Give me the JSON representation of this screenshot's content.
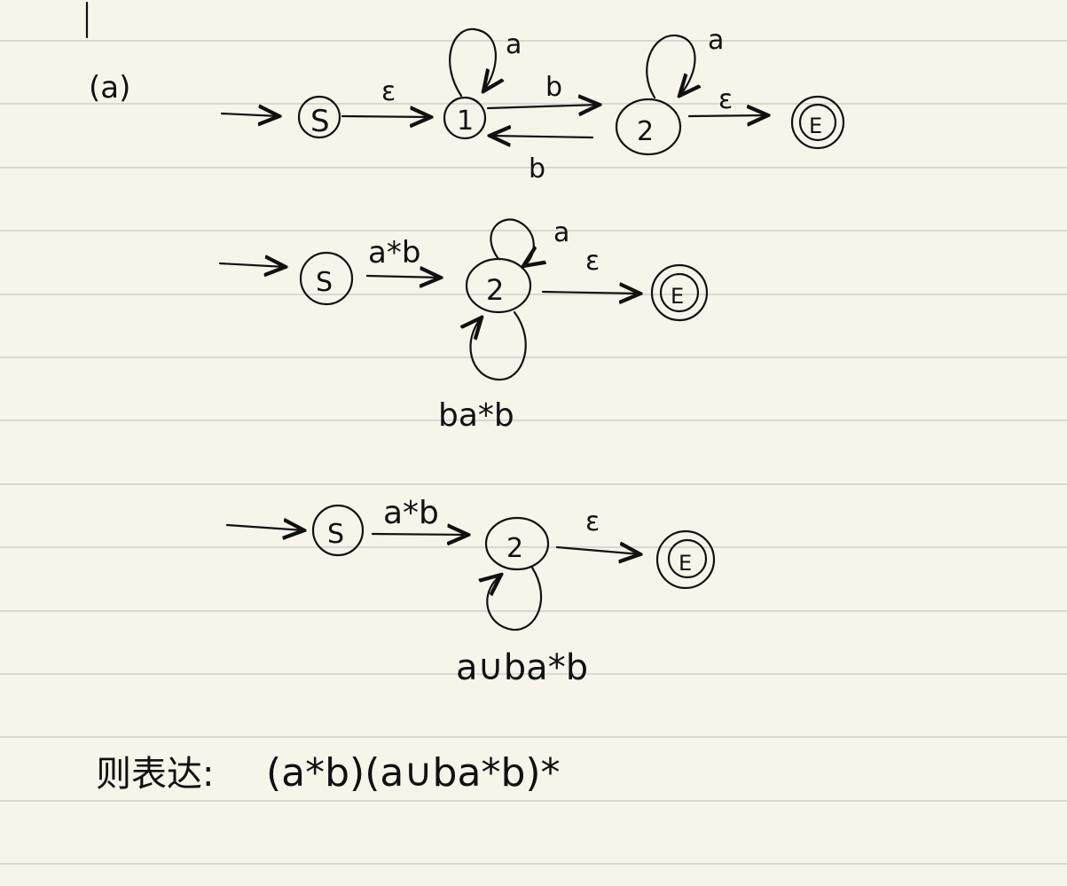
{
  "page": {
    "part_label": "(a)",
    "style": {
      "paper_color": "#f7f5ea",
      "rule_color": "#d9d9d2",
      "ink_color": "#111111"
    }
  },
  "diagrams": [
    {
      "name": "original-nfa",
      "states": [
        "S",
        "1",
        "2",
        "E"
      ],
      "transitions": [
        {
          "from": "S",
          "to": "1",
          "label": "ε"
        },
        {
          "from": "1",
          "to": "1",
          "label": "a"
        },
        {
          "from": "1",
          "to": "2",
          "label": "b"
        },
        {
          "from": "2",
          "to": "1",
          "label": "b"
        },
        {
          "from": "2",
          "to": "2",
          "label": "a"
        },
        {
          "from": "2",
          "to": "E",
          "label": "ε"
        }
      ]
    },
    {
      "name": "after-removing-state-1",
      "states": [
        "S",
        "2",
        "E"
      ],
      "transitions": [
        {
          "from": "S",
          "to": "2",
          "label": "a*b"
        },
        {
          "from": "2",
          "to": "2",
          "label": "a"
        },
        {
          "from": "2",
          "to": "2",
          "label": "ba*b"
        },
        {
          "from": "2",
          "to": "E",
          "label": "ε"
        }
      ]
    },
    {
      "name": "merged-self-loops",
      "states": [
        "S",
        "2",
        "E"
      ],
      "transitions": [
        {
          "from": "S",
          "to": "2",
          "label": "a*b"
        },
        {
          "from": "2",
          "to": "2",
          "label": "a∪ba*b"
        },
        {
          "from": "2",
          "to": "E",
          "label": "ε"
        }
      ]
    }
  ],
  "result": {
    "prefix": "则表达:",
    "expression": "(a*b)(a∪ba*b)*"
  }
}
